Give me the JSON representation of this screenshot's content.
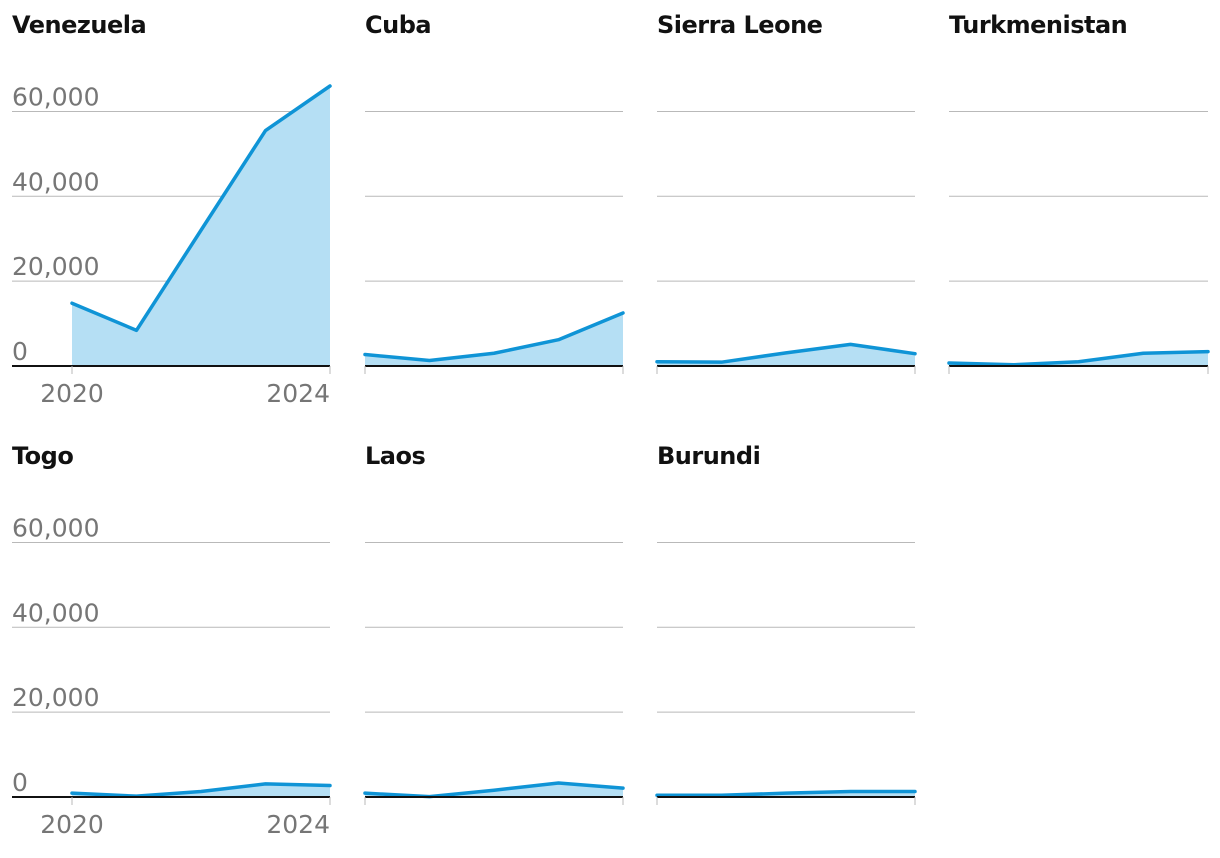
{
  "colors": {
    "line": "#0f94d6",
    "area": "#b5dff4",
    "grid": "#b9b9b9",
    "axis": "#111111",
    "tick_label": "#767676",
    "title": "#111111"
  },
  "chart_data": [
    {
      "type": "area",
      "title": "Venezuela",
      "x": [
        2020,
        2021,
        2022,
        2023,
        2024
      ],
      "values": [
        14800,
        8400,
        32000,
        55500,
        66000
      ],
      "ylim": [
        0,
        66000
      ],
      "yticks": [
        0,
        20000,
        40000,
        60000
      ],
      "ytick_labels": [
        "0",
        "20,000",
        "40,000",
        "60,000"
      ],
      "xtick_labels": [
        "2020",
        "2024"
      ],
      "grid": true
    },
    {
      "type": "area",
      "title": "Cuba",
      "x": [
        2020,
        2021,
        2022,
        2023,
        2024
      ],
      "values": [
        2700,
        1300,
        3000,
        6200,
        12500
      ],
      "ylim": [
        0,
        66000
      ],
      "yticks": [
        0,
        20000,
        40000,
        60000
      ],
      "grid": true
    },
    {
      "type": "area",
      "title": "Sierra Leone",
      "x": [
        2020,
        2021,
        2022,
        2023,
        2024
      ],
      "values": [
        1000,
        900,
        3100,
        5100,
        2900
      ],
      "ylim": [
        0,
        66000
      ],
      "yticks": [
        0,
        20000,
        40000,
        60000
      ],
      "grid": true
    },
    {
      "type": "area",
      "title": "Turkmenistan",
      "x": [
        2020,
        2021,
        2022,
        2023,
        2024
      ],
      "values": [
        700,
        300,
        1000,
        3000,
        3400
      ],
      "ylim": [
        0,
        66000
      ],
      "yticks": [
        0,
        20000,
        40000,
        60000
      ],
      "grid": true
    },
    {
      "type": "area",
      "title": "Togo",
      "x": [
        2020,
        2021,
        2022,
        2023,
        2024
      ],
      "values": [
        900,
        200,
        1300,
        3100,
        2700
      ],
      "ylim": [
        0,
        66000
      ],
      "yticks": [
        0,
        20000,
        40000,
        60000
      ],
      "ytick_labels": [
        "0",
        "20,000",
        "40,000",
        "60,000"
      ],
      "xtick_labels": [
        "2020",
        "2024"
      ],
      "grid": true
    },
    {
      "type": "area",
      "title": "Laos",
      "x": [
        2020,
        2021,
        2022,
        2023,
        2024
      ],
      "values": [
        900,
        100,
        1600,
        3300,
        2100
      ],
      "ylim": [
        0,
        66000
      ],
      "yticks": [
        0,
        20000,
        40000,
        60000
      ],
      "grid": true
    },
    {
      "type": "area",
      "title": "Burundi",
      "x": [
        2020,
        2021,
        2022,
        2023,
        2024
      ],
      "values": [
        400,
        400,
        900,
        1300,
        1300
      ],
      "ylim": [
        0,
        66000
      ],
      "yticks": [
        0,
        20000,
        40000,
        60000
      ],
      "grid": true
    }
  ]
}
